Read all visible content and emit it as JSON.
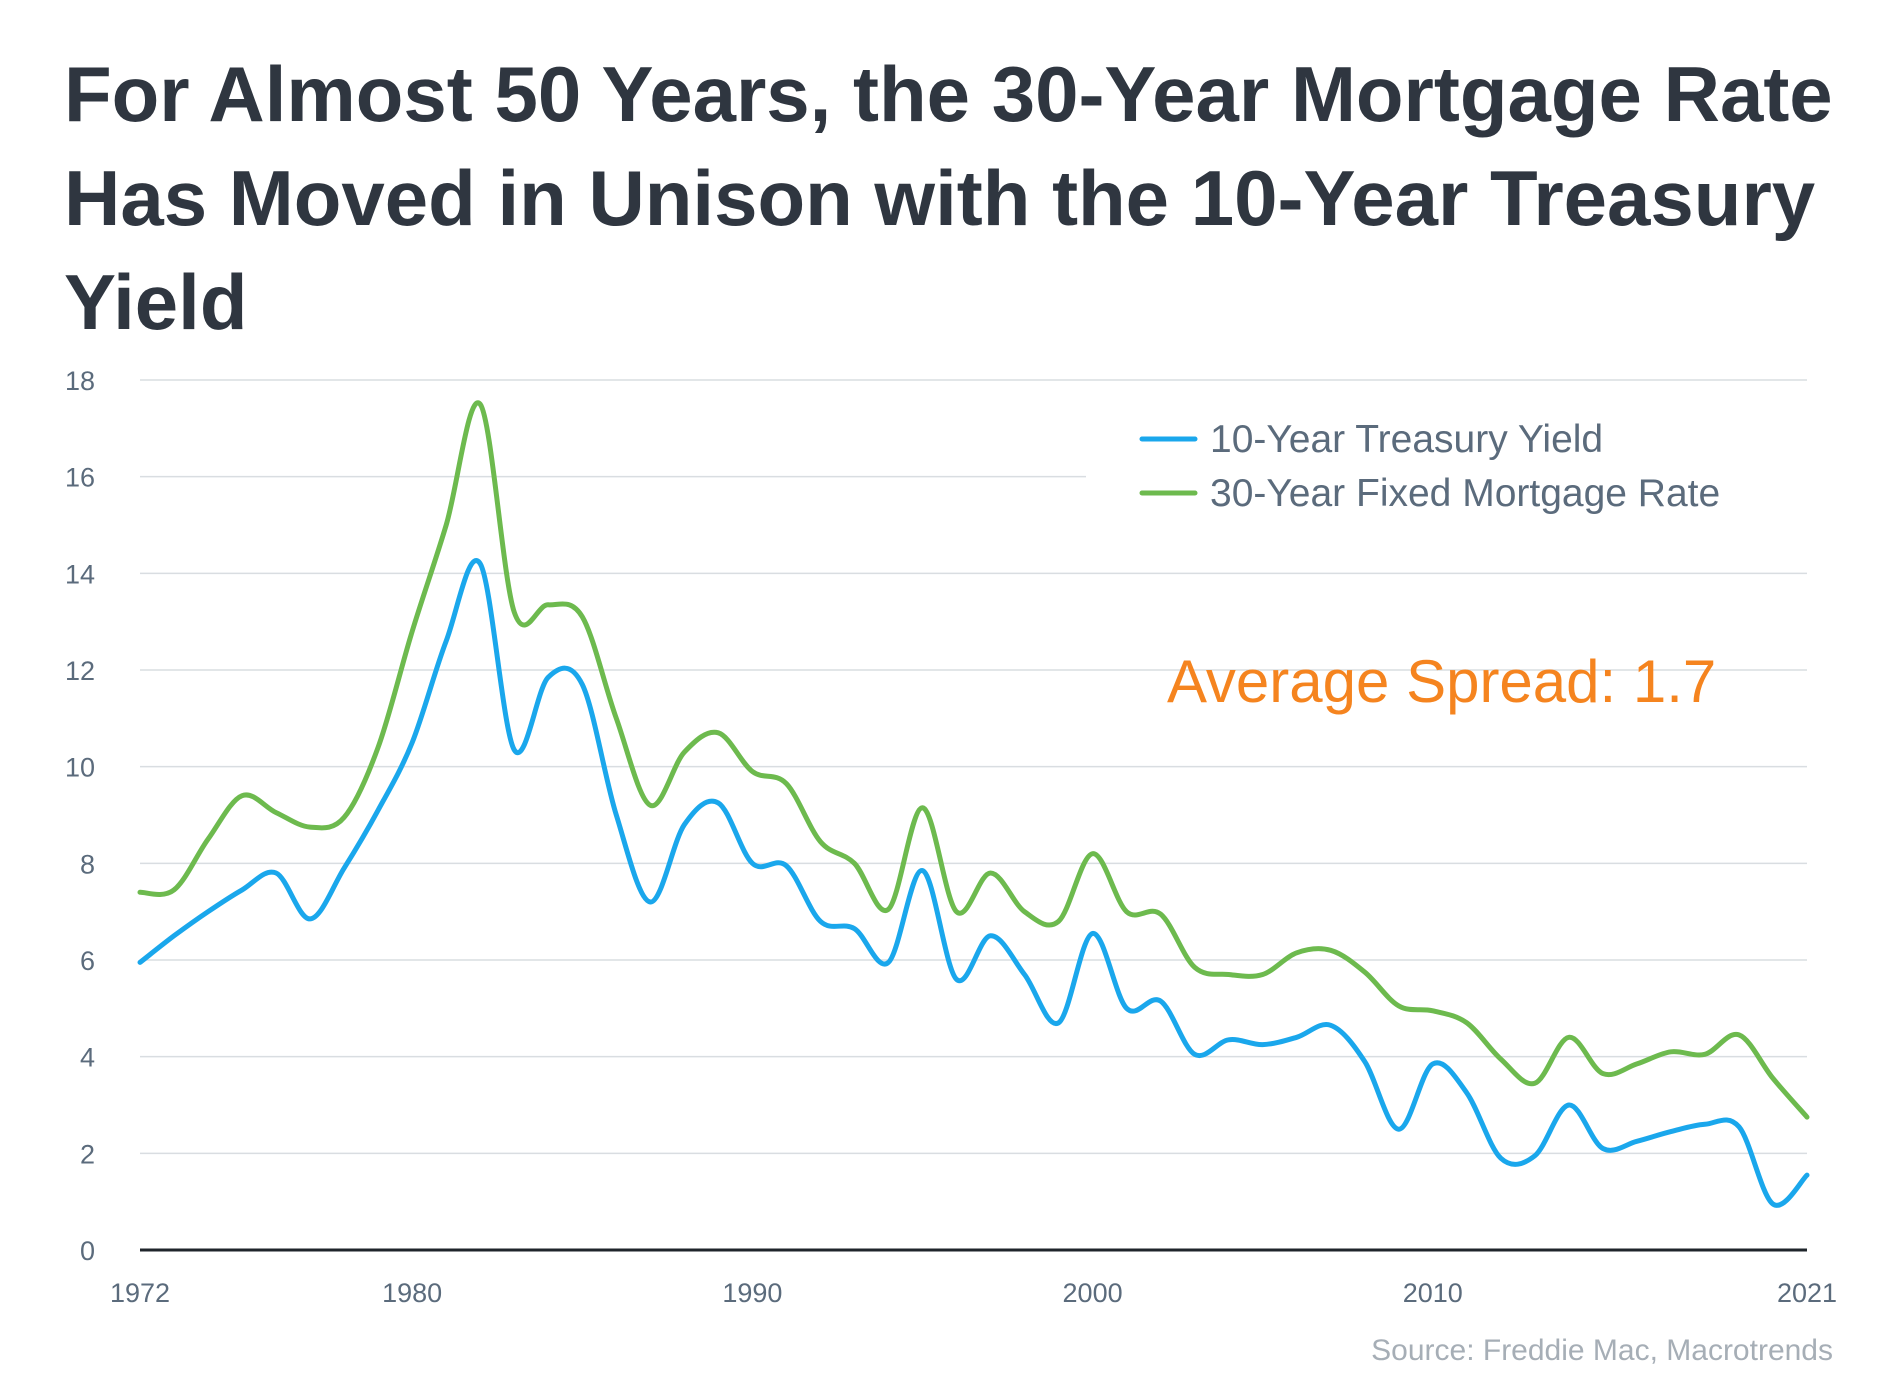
{
  "title": "For Almost 50 Years, the 30-Year Mortgage Rate Has Moved in Unison with the 10-Year Treasury Yield",
  "source": "Source: Freddie Mac, Macrotrends",
  "colors": {
    "title": "#2f3640",
    "treasury": "#1aa7ec",
    "mortgage": "#6dba4e",
    "annotation": "#f5841f",
    "axis_text": "#5b6b7c",
    "grid": "#d9dde1"
  },
  "chart_data": {
    "type": "line",
    "title": "For Almost 50 Years, the 30-Year Mortgage Rate Has Moved in Unison with the 10-Year Treasury Yield",
    "xlabel": "",
    "ylabel": "",
    "xlim": [
      1972,
      2021
    ],
    "ylim": [
      0,
      18
    ],
    "x_ticks": [
      1972,
      1980,
      1990,
      2000,
      2010,
      2021
    ],
    "y_ticks": [
      0,
      2,
      4,
      6,
      8,
      10,
      12,
      14,
      16,
      18
    ],
    "grid": true,
    "legend_position": "top-right",
    "annotation": "Average Spread: 1.7",
    "x": [
      1972,
      1973,
      1974,
      1975,
      1976,
      1977,
      1978,
      1979,
      1980,
      1981,
      1982,
      1983,
      1984,
      1985,
      1986,
      1987,
      1988,
      1989,
      1990,
      1991,
      1992,
      1993,
      1994,
      1995,
      1996,
      1997,
      1998,
      1999,
      2000,
      2001,
      2002,
      2003,
      2004,
      2005,
      2006,
      2007,
      2008,
      2009,
      2010,
      2011,
      2012,
      2013,
      2014,
      2015,
      2016,
      2017,
      2018,
      2019,
      2020,
      2021
    ],
    "series": [
      {
        "name": "10-Year Treasury Yield",
        "color": "#1aa7ec",
        "values": [
          5.95,
          6.5,
          7.0,
          7.45,
          7.8,
          6.85,
          7.9,
          9.1,
          10.5,
          12.6,
          14.2,
          10.35,
          11.85,
          11.7,
          9.0,
          7.2,
          8.8,
          9.25,
          8.0,
          7.95,
          6.8,
          6.65,
          5.95,
          7.85,
          5.6,
          6.5,
          5.7,
          4.7,
          6.55,
          5.0,
          5.15,
          4.05,
          4.35,
          4.25,
          4.4,
          4.65,
          3.9,
          2.5,
          3.85,
          3.25,
          1.9,
          1.95,
          3.0,
          2.1,
          2.25,
          2.45,
          2.6,
          2.55,
          0.95,
          1.55
        ]
      },
      {
        "name": "30-Year Fixed Mortgage Rate",
        "color": "#6dba4e",
        "values": [
          7.4,
          7.45,
          8.5,
          9.4,
          9.05,
          8.75,
          8.95,
          10.4,
          12.8,
          15.0,
          17.5,
          13.2,
          13.35,
          13.1,
          11.0,
          9.2,
          10.3,
          10.7,
          9.9,
          9.65,
          8.45,
          8.0,
          7.05,
          9.15,
          7.0,
          7.8,
          7.0,
          6.8,
          8.2,
          7.0,
          6.95,
          5.85,
          5.7,
          5.7,
          6.15,
          6.2,
          5.75,
          5.05,
          4.95,
          4.7,
          3.95,
          3.45,
          4.4,
          3.65,
          3.85,
          4.1,
          4.05,
          4.45,
          3.55,
          2.75
        ]
      }
    ]
  }
}
